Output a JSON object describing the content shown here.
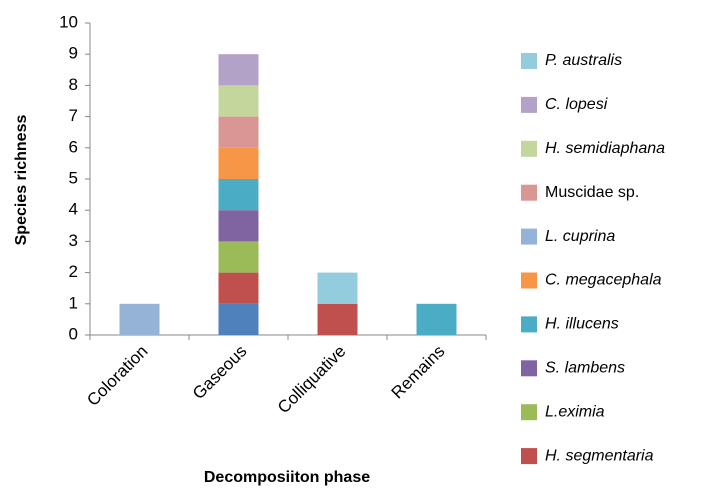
{
  "chart_data": {
    "type": "stacked_bar",
    "x_label": "Decomposiiton phase",
    "y_label": "Species richness",
    "categories": [
      "Coloration",
      "Gaseous",
      "Colliquative",
      "Remains"
    ],
    "ylim": [
      0,
      10
    ],
    "yticks": [
      0,
      1,
      2,
      3,
      4,
      5,
      6,
      7,
      8,
      9,
      10
    ],
    "series": [
      {
        "color": "#4f81bd",
        "values": [
          0,
          1,
          0,
          0
        ]
      },
      {
        "name": "H. segmentaria",
        "color": "#c0504d",
        "values": [
          0,
          1,
          1,
          0
        ]
      },
      {
        "name": "L.eximia",
        "color": "#9bbb59",
        "values": [
          0,
          1,
          0,
          0
        ]
      },
      {
        "name": "S. lambens",
        "color": "#8064a2",
        "values": [
          0,
          1,
          0,
          0
        ]
      },
      {
        "name": "H. illucens",
        "color": "#4bacc6",
        "values": [
          0,
          1,
          0,
          1
        ]
      },
      {
        "name": "C. megacephala",
        "color": "#f79646",
        "values": [
          0,
          1,
          0,
          0
        ]
      },
      {
        "name": "L. cuprina",
        "color": "#95b3d7",
        "values": [
          1,
          0,
          0,
          0
        ]
      },
      {
        "name": "Muscidae sp.",
        "color": "#d99694",
        "values": [
          0,
          1,
          0,
          0
        ]
      },
      {
        "name": "H. semidiaphana",
        "color": "#c3d69b",
        "values": [
          0,
          1,
          0,
          0
        ]
      },
      {
        "name": "C. lopesi",
        "color": "#b3a2c7",
        "values": [
          0,
          1,
          0,
          0
        ]
      },
      {
        "name": "P. australis",
        "color": "#93cddd",
        "values": [
          0,
          0,
          1,
          0
        ]
      }
    ]
  }
}
